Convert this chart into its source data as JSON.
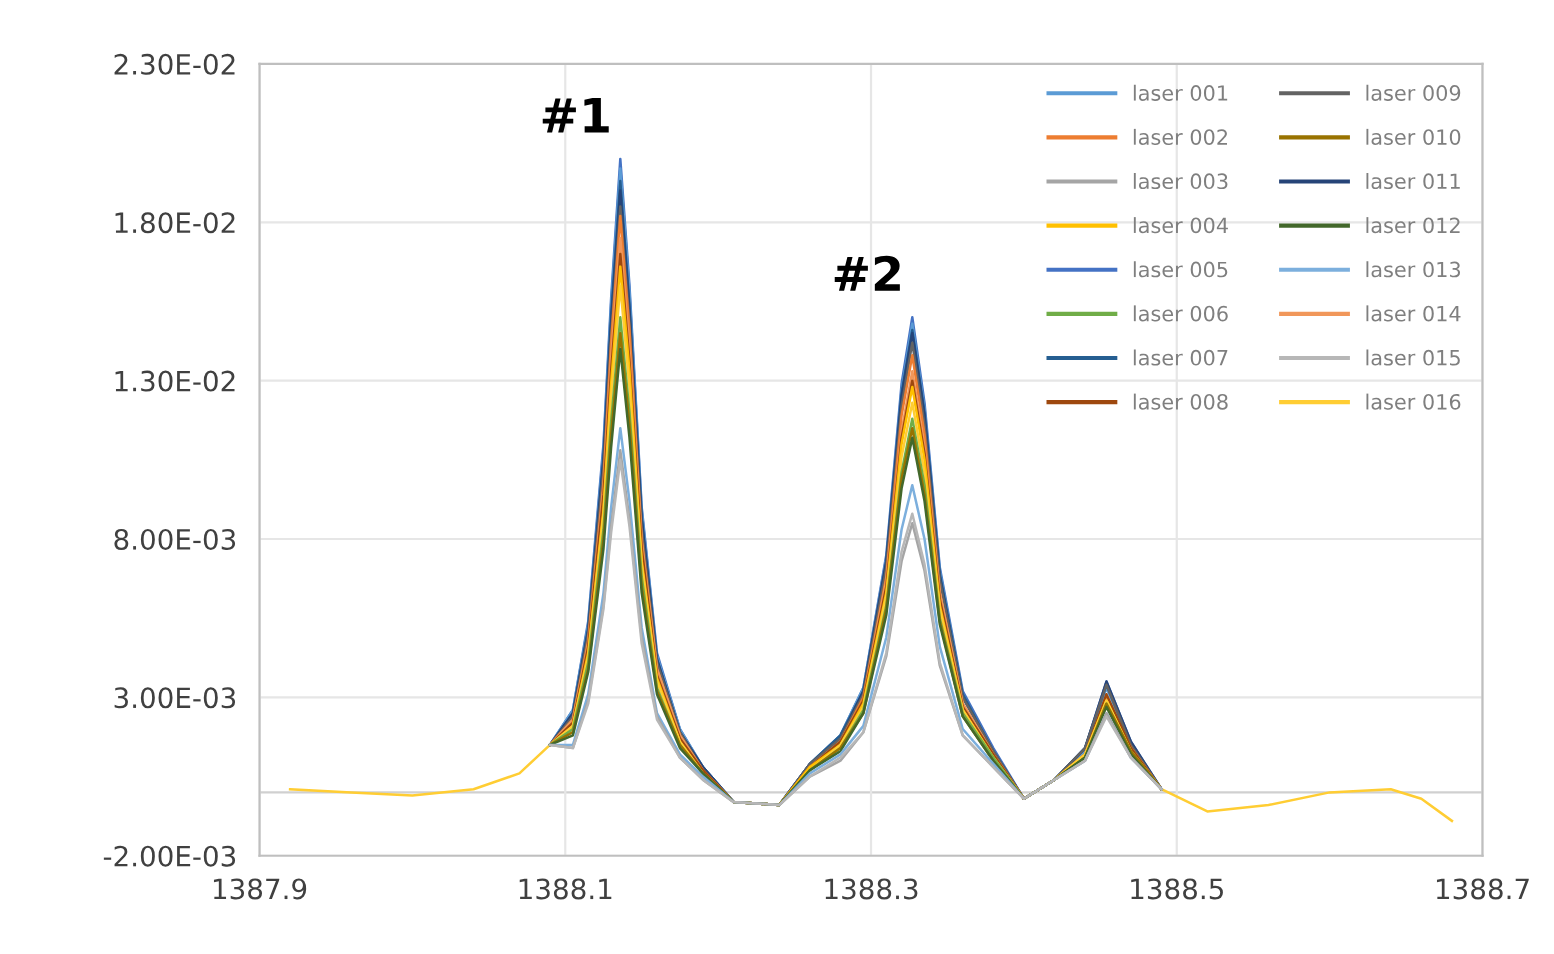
{
  "chart_data": {
    "type": "line",
    "x": [
      1387.92,
      1387.96,
      1388.0,
      1388.04,
      1388.07,
      1388.09,
      1388.105,
      1388.115,
      1388.125,
      1388.13,
      1388.136,
      1388.142,
      1388.15,
      1388.16,
      1388.175,
      1388.19,
      1388.21,
      1388.24,
      1388.26,
      1388.28,
      1388.295,
      1388.31,
      1388.32,
      1388.327,
      1388.335,
      1388.345,
      1388.36,
      1388.38,
      1388.4,
      1388.42,
      1388.44,
      1388.454,
      1388.47,
      1388.49,
      1388.52,
      1388.56,
      1388.6,
      1388.64,
      1388.66,
      1388.68
    ],
    "series": [
      {
        "name": "laser 001",
        "color": "#5b9bd5",
        "values": [
          null,
          null,
          null,
          null,
          null,
          0.0015,
          0.0026,
          0.0053,
          0.0108,
          0.0154,
          0.0197,
          0.0158,
          0.0089,
          0.0043,
          0.002,
          0.0008,
          -0.0003,
          -0.0004,
          0.0009,
          0.0018,
          0.0033,
          0.0074,
          0.0127,
          0.0148,
          0.0121,
          0.007,
          0.0031,
          0.0013,
          -0.0002,
          0.0004,
          0.0013,
          0.0033,
          0.0015,
          0.0001,
          null,
          null,
          null,
          null,
          null,
          null
        ]
      },
      {
        "name": "laser 002",
        "color": "#ed7d31",
        "values": [
          null,
          null,
          null,
          null,
          null,
          0.0015,
          0.0023,
          0.0048,
          0.0098,
          0.0142,
          0.0182,
          0.0146,
          0.008,
          0.0039,
          0.0018,
          0.0007,
          -0.0003,
          -0.0004,
          0.0008,
          0.0016,
          0.003,
          0.0068,
          0.0119,
          0.0138,
          0.0113,
          0.0063,
          0.0028,
          0.0012,
          -0.0002,
          0.0004,
          0.0012,
          0.003,
          0.0014,
          0.0001,
          null,
          null,
          null,
          null,
          null,
          null
        ]
      },
      {
        "name": "laser 003",
        "color": "#a5a5a5",
        "values": [
          null,
          null,
          null,
          null,
          null,
          0.0015,
          0.0014,
          0.0029,
          0.0059,
          0.0084,
          0.0108,
          0.0086,
          0.0049,
          0.0024,
          0.0011,
          0.0004,
          -0.0003,
          -0.0004,
          0.0005,
          0.001,
          0.0019,
          0.0043,
          0.0073,
          0.0085,
          0.007,
          0.004,
          0.0018,
          0.0008,
          -0.0002,
          0.0004,
          0.001,
          0.0025,
          0.0011,
          0.0001,
          null,
          null,
          null,
          null,
          null,
          null
        ]
      },
      {
        "name": "laser 004",
        "color": "#ffc000",
        "values": [
          null,
          null,
          null,
          null,
          null,
          0.0015,
          0.0021,
          0.0044,
          0.0089,
          0.0129,
          0.0166,
          0.0133,
          0.0073,
          0.0036,
          0.0016,
          0.0006,
          -0.0003,
          -0.0004,
          0.0008,
          0.0015,
          0.0028,
          0.0063,
          0.011,
          0.0128,
          0.0105,
          0.0059,
          0.0026,
          0.0011,
          -0.0002,
          0.0004,
          0.0012,
          0.0029,
          0.0013,
          0.0001,
          null,
          null,
          null,
          null,
          null,
          null
        ]
      },
      {
        "name": "laser 005",
        "color": "#4472c4",
        "values": [
          null,
          null,
          null,
          null,
          null,
          0.0015,
          0.0026,
          0.0054,
          0.011,
          0.0156,
          0.02,
          0.016,
          0.009,
          0.0044,
          0.002,
          0.0008,
          -0.0003,
          -0.0004,
          0.0009,
          0.0018,
          0.0033,
          0.0075,
          0.0129,
          0.015,
          0.0123,
          0.0071,
          0.0032,
          0.0014,
          -0.0002,
          0.0004,
          0.0014,
          0.0035,
          0.0016,
          0.0001,
          null,
          null,
          null,
          null,
          null,
          null
        ]
      },
      {
        "name": "laser 006",
        "color": "#70ad47",
        "values": [
          null,
          null,
          null,
          null,
          null,
          0.0015,
          0.002,
          0.0041,
          0.0083,
          0.0117,
          0.015,
          0.012,
          0.0068,
          0.0033,
          0.0015,
          0.0006,
          -0.0003,
          -0.0004,
          0.0007,
          0.0014,
          0.0026,
          0.0059,
          0.0101,
          0.0118,
          0.0097,
          0.0055,
          0.0025,
          0.0011,
          -0.0002,
          0.0004,
          0.0011,
          0.0028,
          0.0013,
          0.0001,
          null,
          null,
          null,
          null,
          null,
          null
        ]
      },
      {
        "name": "laser 007",
        "color": "#255e91",
        "values": [
          null,
          null,
          null,
          null,
          null,
          0.0015,
          0.0025,
          0.0052,
          0.0106,
          0.0151,
          0.0193,
          0.0154,
          0.0087,
          0.0042,
          0.0019,
          0.0008,
          -0.0003,
          -0.0004,
          0.0009,
          0.0018,
          0.0032,
          0.0073,
          0.0126,
          0.0146,
          0.012,
          0.0069,
          0.0031,
          0.0013,
          -0.0002,
          0.0004,
          0.0014,
          0.0034,
          0.0015,
          0.0001,
          null,
          null,
          null,
          null,
          null,
          null
        ]
      },
      {
        "name": "laser 008",
        "color": "#9e480e",
        "values": [
          null,
          null,
          null,
          null,
          null,
          0.0015,
          0.0022,
          0.0046,
          0.0094,
          0.0133,
          0.017,
          0.0136,
          0.0077,
          0.0037,
          0.0017,
          0.0007,
          -0.0003,
          -0.0004,
          0.0008,
          0.0016,
          0.0029,
          0.0065,
          0.0112,
          0.013,
          0.0107,
          0.0061,
          0.0027,
          0.0012,
          -0.0002,
          0.0004,
          0.0012,
          0.0031,
          0.0014,
          0.0001,
          null,
          null,
          null,
          null,
          null,
          null
        ]
      },
      {
        "name": "laser 009",
        "color": "#636363",
        "values": [
          null,
          null,
          null,
          null,
          null,
          0.0015,
          0.0024,
          0.005,
          0.0102,
          0.0144,
          0.0185,
          0.0148,
          0.0083,
          0.0041,
          0.0019,
          0.0007,
          -0.0003,
          -0.0004,
          0.0009,
          0.0017,
          0.0031,
          0.0071,
          0.0122,
          0.0142,
          0.0116,
          0.0067,
          0.003,
          0.0013,
          -0.0002,
          0.0004,
          0.0014,
          0.0034,
          0.0015,
          0.0001,
          null,
          null,
          null,
          null,
          null,
          null
        ]
      },
      {
        "name": "laser 010",
        "color": "#997300",
        "values": [
          null,
          null,
          null,
          null,
          null,
          0.0015,
          0.0019,
          0.0039,
          0.008,
          0.0113,
          0.0145,
          0.0116,
          0.0065,
          0.0032,
          0.0015,
          0.0006,
          -0.0003,
          -0.0004,
          0.0007,
          0.0014,
          0.0025,
          0.0058,
          0.0099,
          0.0115,
          0.0094,
          0.0054,
          0.0024,
          0.001,
          -0.0002,
          0.0004,
          0.0011,
          0.0028,
          0.0013,
          0.0001,
          null,
          null,
          null,
          null,
          null,
          null
        ]
      },
      {
        "name": "laser 011",
        "color": "#264478",
        "values": [
          null,
          null,
          null,
          null,
          null,
          0.0015,
          0.0025,
          0.0051,
          0.0105,
          0.0148,
          0.019,
          0.0152,
          0.0086,
          0.0042,
          0.0019,
          0.0008,
          -0.0003,
          -0.0004,
          0.0009,
          0.0017,
          0.0032,
          0.0073,
          0.0125,
          0.0145,
          0.0119,
          0.0068,
          0.003,
          0.0013,
          -0.0002,
          0.0004,
          0.0014,
          0.0035,
          0.0016,
          0.0001,
          null,
          null,
          null,
          null,
          null,
          null
        ]
      },
      {
        "name": "laser 012",
        "color": "#43682b",
        "values": [
          null,
          null,
          null,
          null,
          null,
          0.0015,
          0.0018,
          0.0038,
          0.0077,
          0.0109,
          0.014,
          0.0112,
          0.0063,
          0.0031,
          0.0014,
          0.0006,
          -0.0003,
          -0.0004,
          0.0007,
          0.0013,
          0.0025,
          0.0056,
          0.0096,
          0.0112,
          0.0092,
          0.0053,
          0.0024,
          0.001,
          -0.0002,
          0.0004,
          0.0011,
          0.0027,
          0.0012,
          0.0001,
          null,
          null,
          null,
          null,
          null,
          null
        ]
      },
      {
        "name": "laser 013",
        "color": "#7cafdd",
        "values": [
          null,
          null,
          null,
          null,
          null,
          0.0015,
          0.0015,
          0.0031,
          0.0063,
          0.009,
          0.0115,
          0.0092,
          0.0052,
          0.0025,
          0.0012,
          0.0005,
          -0.0003,
          -0.0004,
          0.0006,
          0.0012,
          0.0021,
          0.0049,
          0.0083,
          0.0097,
          0.008,
          0.0046,
          0.002,
          0.0009,
          -0.0002,
          0.0004,
          0.001,
          0.0025,
          0.0011,
          0.0001,
          null,
          null,
          null,
          null,
          null,
          null
        ]
      },
      {
        "name": "laser 014",
        "color": "#f1975a",
        "values": [
          null,
          null,
          null,
          null,
          null,
          0.0015,
          0.0023,
          0.0047,
          0.0096,
          0.0137,
          0.0175,
          0.014,
          0.0079,
          0.0039,
          0.0018,
          0.0007,
          -0.0003,
          -0.0004,
          0.0008,
          0.0016,
          0.0029,
          0.0067,
          0.0114,
          0.0133,
          0.0109,
          0.0063,
          0.0028,
          0.0012,
          -0.0002,
          0.0004,
          0.0012,
          0.003,
          0.0014,
          0.0001,
          null,
          null,
          null,
          null,
          null,
          null
        ]
      },
      {
        "name": "laser 015",
        "color": "#b7b7b7",
        "values": [
          null,
          null,
          null,
          null,
          null,
          0.0015,
          0.0014,
          0.0028,
          0.0058,
          0.0082,
          0.0105,
          0.0084,
          0.0047,
          0.0023,
          0.0011,
          0.0004,
          -0.0003,
          -0.0004,
          0.0005,
          0.0011,
          0.0019,
          0.0044,
          0.0076,
          0.0088,
          0.0072,
          0.0041,
          0.0018,
          0.0008,
          -0.0002,
          0.0004,
          0.001,
          0.0024,
          0.0011,
          0.0001,
          null,
          null,
          null,
          null,
          null,
          null
        ]
      },
      {
        "name": "laser 016",
        "color": "#ffcd33",
        "values": [
          0.0001,
          0.0,
          -0.0001,
          0.0001,
          0.0006,
          0.0015,
          0.0021,
          0.0043,
          0.0088,
          0.0125,
          0.016,
          0.0128,
          0.0072,
          0.0035,
          0.0016,
          0.0006,
          -0.0003,
          -0.0004,
          0.0007,
          0.0015,
          0.0027,
          0.0062,
          0.0106,
          0.0123,
          0.0101,
          0.0058,
          0.0026,
          0.0011,
          -0.0002,
          0.0004,
          0.0012,
          0.0029,
          0.0013,
          0.0001,
          -0.0006,
          -0.0004,
          0.0,
          0.0001,
          -0.0002,
          -0.0009
        ]
      }
    ],
    "xlim": [
      1387.9,
      1388.7
    ],
    "xticks": [
      1387.9,
      1388.1,
      1388.3,
      1388.5,
      1388.7
    ],
    "ylim": [
      -0.002,
      0.023
    ],
    "yticks": [
      {
        "value": -0.002,
        "label": "-2.00E-03"
      },
      {
        "value": 0.003,
        "label": "3.00E-03"
      },
      {
        "value": 0.008,
        "label": "8.00E-03"
      },
      {
        "value": 0.013,
        "label": "1.30E-02"
      },
      {
        "value": 0.018,
        "label": "1.80E-02"
      },
      {
        "value": 0.023,
        "label": "2.30E-02"
      }
    ],
    "annotations": [
      {
        "text": "#1",
        "x": 1388.136,
        "y": 0.02
      },
      {
        "text": "#2",
        "x": 1388.327,
        "y": 0.015
      }
    ],
    "grid": true,
    "legend": "top right",
    "marker": "none",
    "line_style": "solid"
  }
}
